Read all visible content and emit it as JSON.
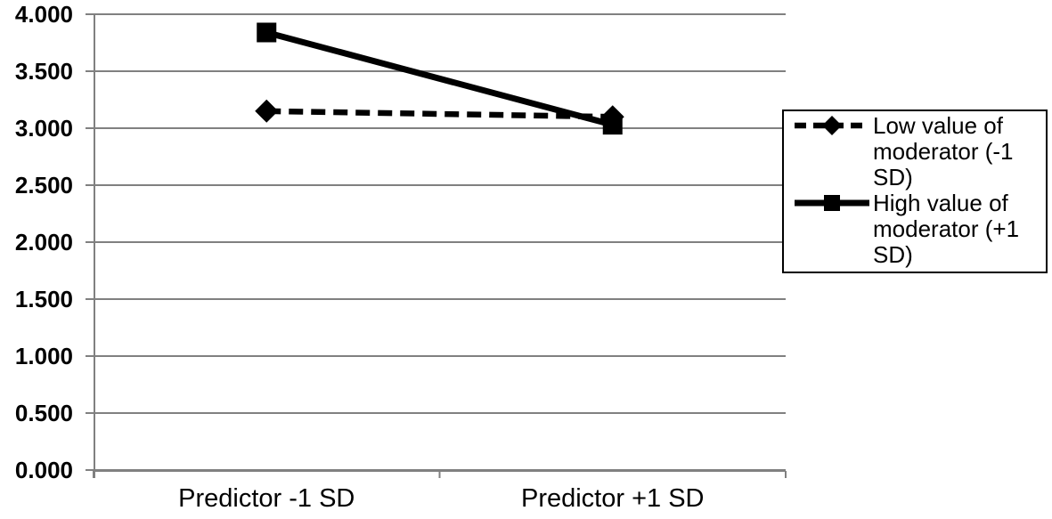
{
  "chart_data": {
    "type": "line",
    "title": "",
    "xlabel": "",
    "ylabel": "",
    "categories": [
      "Predictor -1 SD",
      "Predictor +1 SD"
    ],
    "series": [
      {
        "name": "Low value of moderator (-1 SD)",
        "values": [
          3.15,
          3.1
        ],
        "line_style": "dashed",
        "marker": "diamond",
        "color": "#000000"
      },
      {
        "name": "High value of moderator (+1 SD)",
        "values": [
          3.84,
          3.03
        ],
        "line_style": "solid",
        "marker": "square",
        "color": "#000000"
      }
    ],
    "ylim": [
      0,
      4
    ],
    "ytick_step": 0.5,
    "ytick_labels": [
      "0.000",
      "0.500",
      "1.000",
      "1.500",
      "2.000",
      "2.500",
      "3.000",
      "3.500",
      "4.000"
    ],
    "grid": true,
    "legend_position": "right",
    "colors": {
      "gridline": "#808080",
      "axis": "#808080",
      "series": "#000000",
      "text": "#000000",
      "background": "#ffffff"
    }
  }
}
